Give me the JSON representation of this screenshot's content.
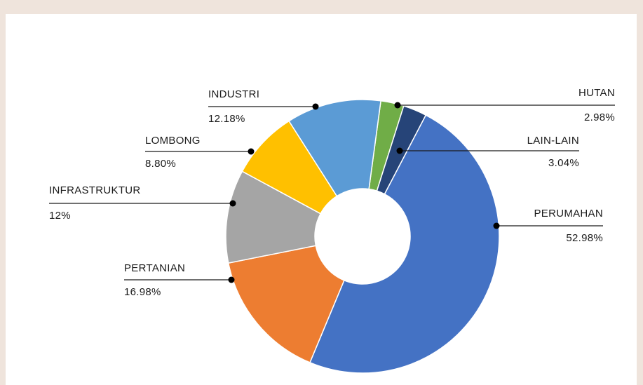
{
  "chart_data": {
    "type": "donut",
    "categories": [
      "HUTAN",
      "LAIN-LAIN",
      "PERUMAHAN",
      "PERTANIAN",
      "INFRASTRUKTUR",
      "LOMBONG",
      "INDUSTRI"
    ],
    "values": [
      2.98,
      3.04,
      52.98,
      16.98,
      12,
      8.8,
      12.18
    ],
    "value_labels": [
      "2.98%",
      "3.04%",
      "52.98%",
      "16.98%",
      "12%",
      "8.80%",
      "12.18%"
    ],
    "colors": [
      "#70ad47",
      "#264478",
      "#4472c4",
      "#ed7d31",
      "#a5a5a5",
      "#ffc000",
      "#5b9bd5"
    ]
  }
}
